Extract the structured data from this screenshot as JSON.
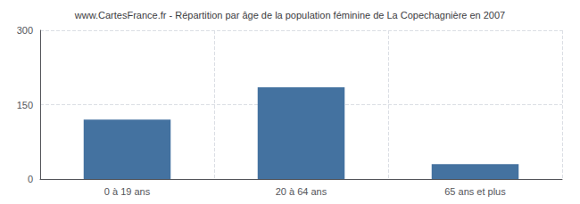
{
  "chart_data": {
    "type": "bar",
    "title": "www.CartesFrance.fr - Répartition par âge de la population féminine de La Copechagnière en 2007",
    "categories": [
      "0 à 19 ans",
      "20 à 64 ans",
      "65 ans et plus"
    ],
    "values": [
      120,
      185,
      30
    ],
    "color": "#4472a0",
    "ylim": [
      0,
      300
    ],
    "yticks": [
      0,
      150,
      300
    ],
    "grid": true
  }
}
